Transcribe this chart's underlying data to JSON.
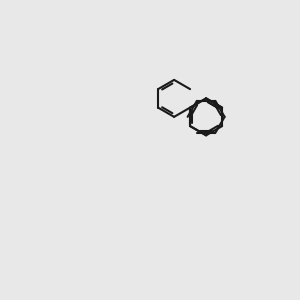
{
  "background_color": "#e8e8e8",
  "bond_color": "#1a1a1a",
  "S_color": "#c8a800",
  "N_color": "#2050f0",
  "O_color": "#ff1010",
  "H_color": "#408080",
  "lw": 1.5,
  "dlw": 1.5,
  "figsize": [
    3.0,
    3.0
  ],
  "dpi": 100
}
